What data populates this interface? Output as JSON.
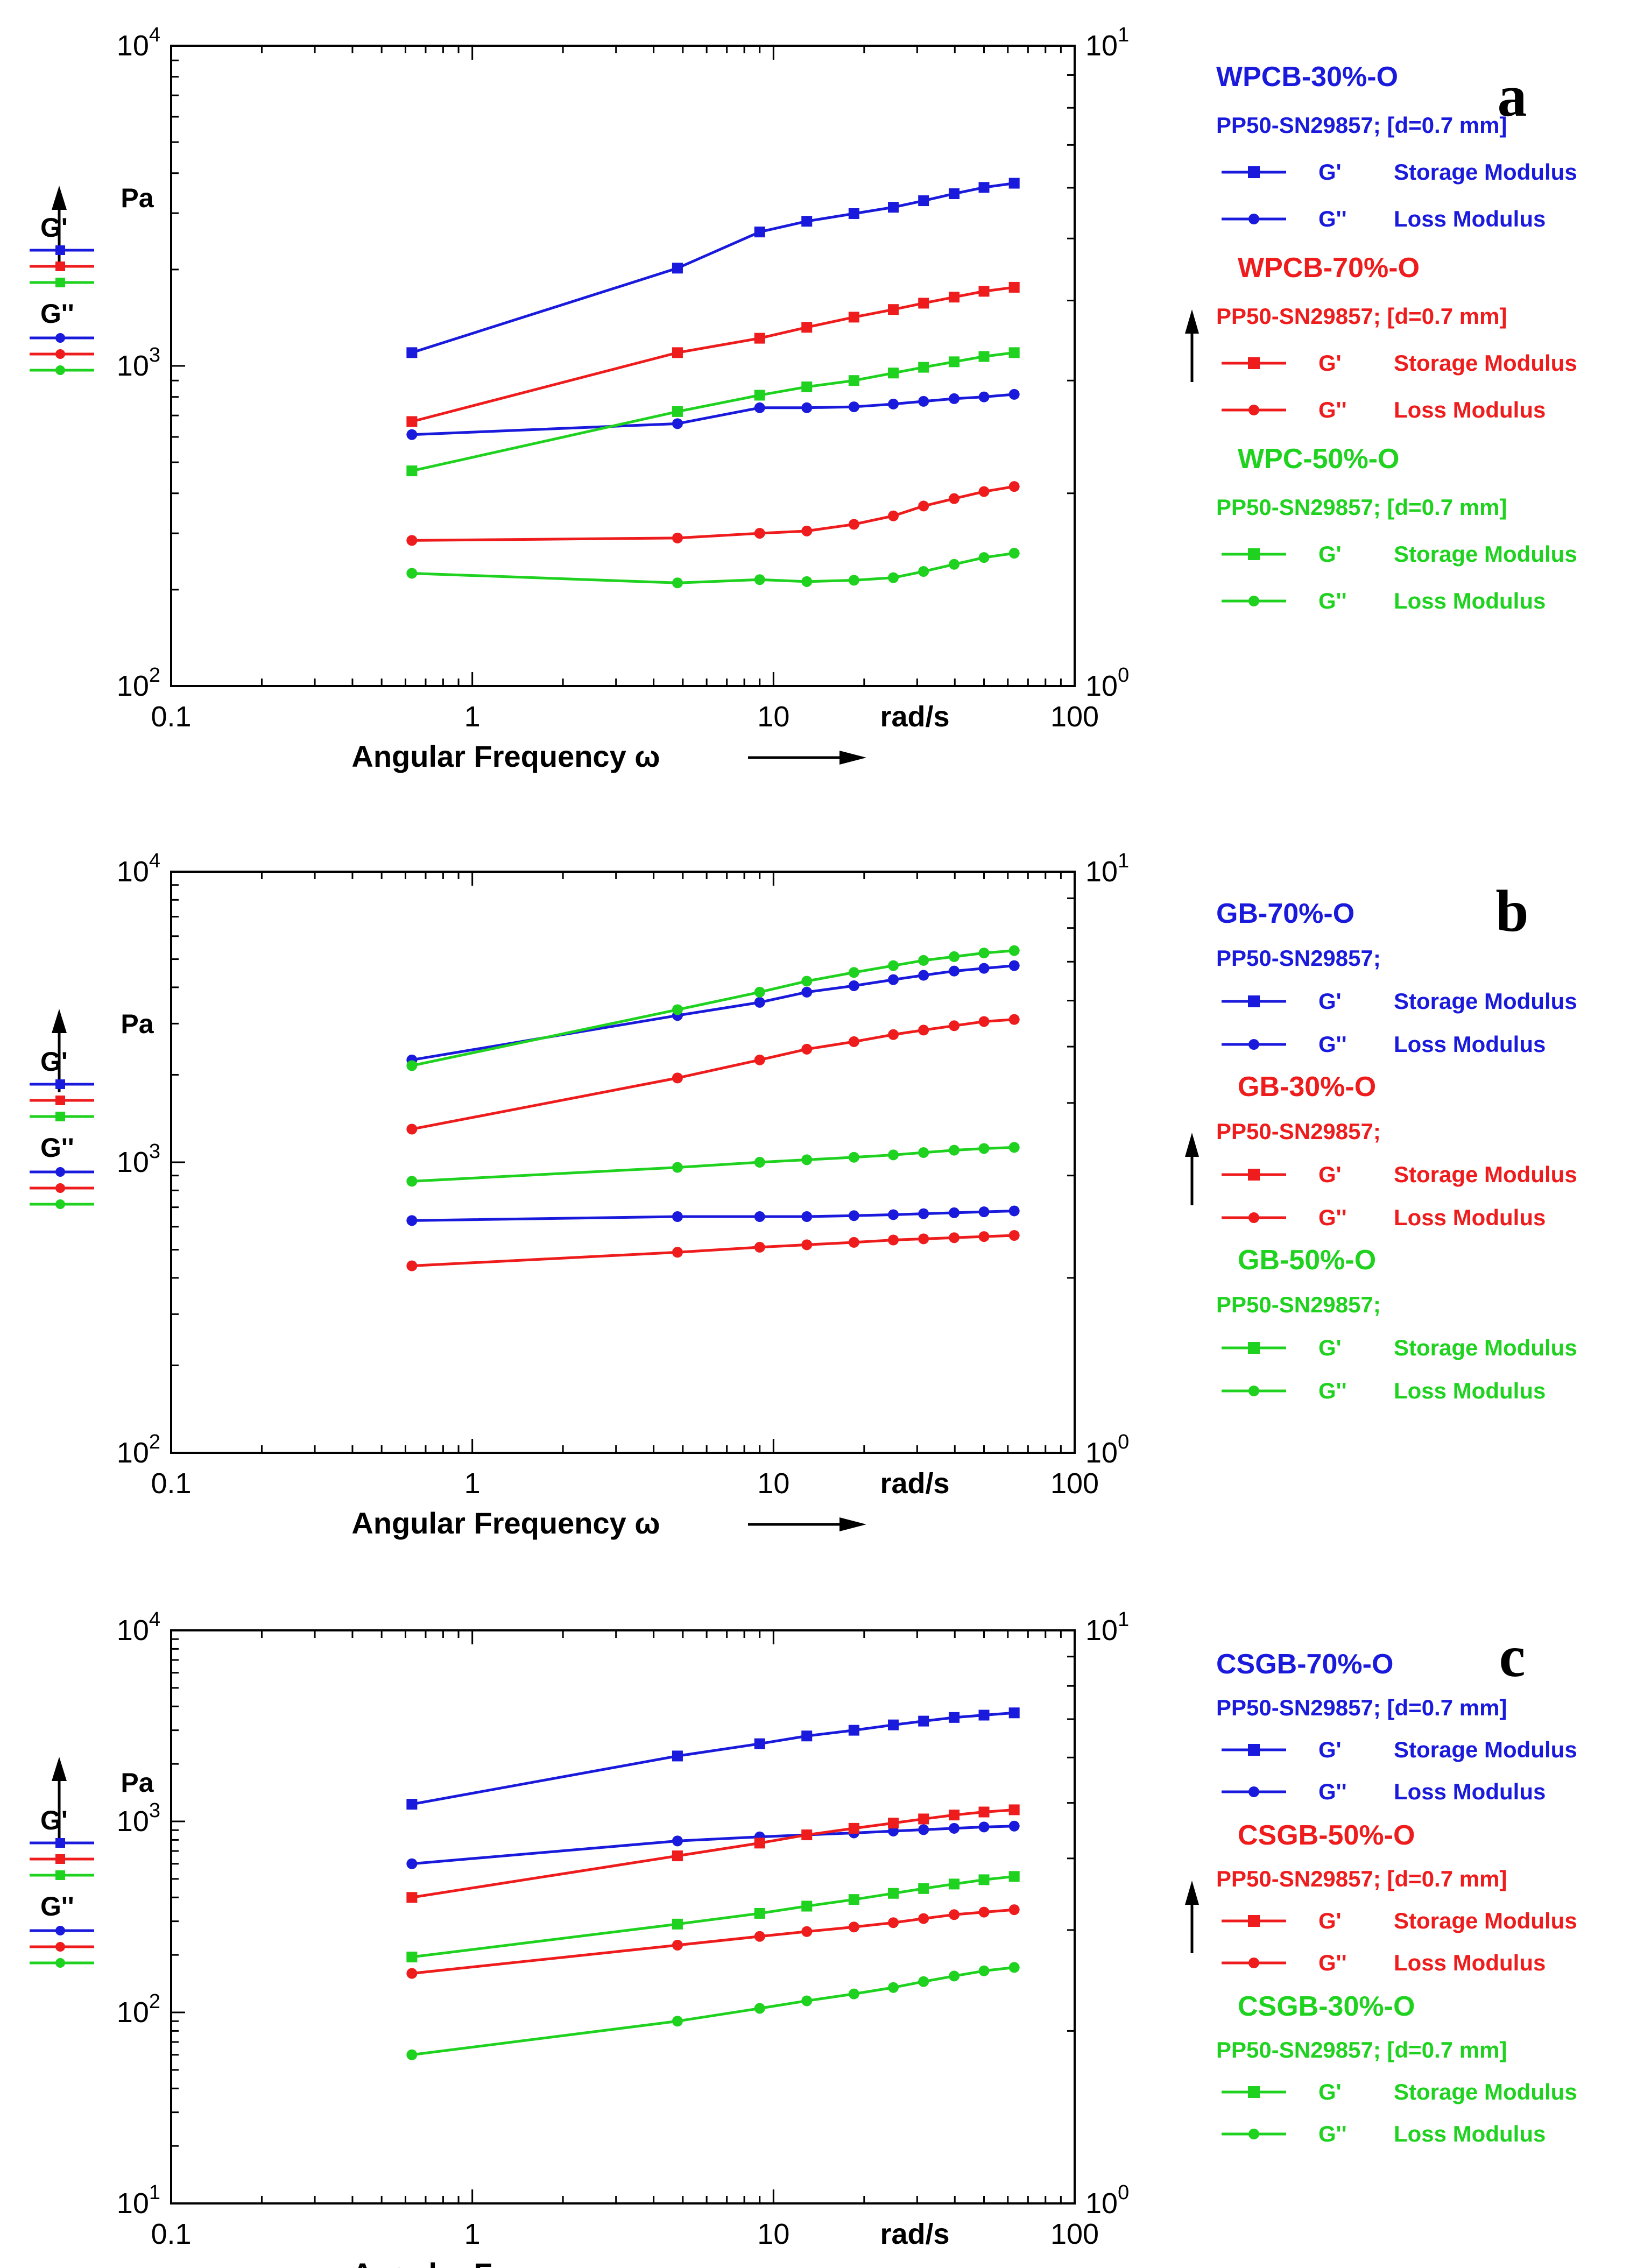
{
  "chart_data": [
    {
      "type": "line",
      "panel_letter": "a",
      "xlabel": "Angular Frequency ω",
      "x_unit": "rad/s",
      "ylabel": "Pa",
      "xscale": "log",
      "yscale": "log",
      "xlim": [
        0.1,
        100
      ],
      "ylim": [
        100,
        10000
      ],
      "y2lim": [
        1,
        10
      ],
      "x_ticks": [
        {
          "v": 0.1,
          "label": "0.1"
        },
        {
          "v": 1,
          "label": "1"
        },
        {
          "v": 10,
          "label": "10"
        },
        {
          "v": 100,
          "label": "100"
        }
      ],
      "y_ticks": [
        {
          "v": 100,
          "base": "10",
          "exp": "2"
        },
        {
          "v": 1000,
          "base": "10",
          "exp": "3"
        },
        {
          "v": 10000,
          "base": "10",
          "exp": "4"
        }
      ],
      "y2_ticks": [
        {
          "v": 1,
          "base": "10",
          "exp": "0"
        },
        {
          "v": 10,
          "base": "10",
          "exp": "1"
        }
      ],
      "left_key": {
        "g1": "G'",
        "g2": "G''"
      },
      "legend": [
        {
          "sample": "WPCB-30%-O",
          "geometry": "PP50-SN29857; [d=0.7 mm]",
          "color": "#1a1adc",
          "g1": "G'",
          "g1_name": "Storage Modulus",
          "g2": "G''",
          "g2_name": "Loss Modulus"
        },
        {
          "sample": "WPCB-70%-O",
          "geometry": "PP50-SN29857; [d=0.7 mm]",
          "color": "#ee1c1c",
          "g1": "G'",
          "g1_name": "Storage Modulus",
          "g2": "G''",
          "g2_name": "Loss Modulus"
        },
        {
          "sample": "WPC-50%-O",
          "geometry": "PP50-SN29857; [d=0.7 mm]",
          "color": "#1fd21f",
          "g1": "G'",
          "g1_name": "Storage Modulus",
          "g2": "G''",
          "g2_name": "Loss Modulus"
        }
      ],
      "x": [
        0.63,
        4.8,
        9.0,
        12.9,
        18.5,
        25.0,
        31.5,
        39.8,
        50.0,
        63.0
      ],
      "series": [
        {
          "name": "WPCB-30%-O G'",
          "color": "#1a1adc",
          "marker": "square",
          "values": [
            1100,
            2020,
            2620,
            2830,
            2990,
            3130,
            3280,
            3450,
            3610,
            3720
          ]
        },
        {
          "name": "WPCB-30%-O G''",
          "color": "#1a1adc",
          "marker": "circle",
          "values": [
            610,
            660,
            740,
            740,
            745,
            760,
            775,
            790,
            800,
            815
          ]
        },
        {
          "name": "WPCB-70%-O G'",
          "color": "#ee1c1c",
          "marker": "square",
          "values": [
            670,
            1100,
            1220,
            1320,
            1420,
            1500,
            1570,
            1640,
            1710,
            1760
          ]
        },
        {
          "name": "WPCB-70%-O G''",
          "color": "#ee1c1c",
          "marker": "circle",
          "values": [
            285,
            290,
            300,
            305,
            320,
            340,
            365,
            385,
            405,
            420
          ]
        },
        {
          "name": "WPC-50%-O G'",
          "color": "#1fd21f",
          "marker": "square",
          "values": [
            470,
            720,
            810,
            860,
            900,
            950,
            990,
            1030,
            1070,
            1100
          ]
        },
        {
          "name": "WPC-50%-O G''",
          "color": "#1fd21f",
          "marker": "circle",
          "values": [
            225,
            210,
            215,
            212,
            214,
            218,
            228,
            240,
            252,
            260
          ]
        }
      ]
    },
    {
      "type": "line",
      "panel_letter": "b",
      "xlabel": "Angular Frequency ω",
      "x_unit": "rad/s",
      "ylabel": "Pa",
      "xscale": "log",
      "yscale": "log",
      "xlim": [
        0.1,
        100
      ],
      "ylim": [
        100,
        10000
      ],
      "y2lim": [
        1,
        10
      ],
      "x_ticks": [
        {
          "v": 0.1,
          "label": "0.1"
        },
        {
          "v": 1,
          "label": "1"
        },
        {
          "v": 10,
          "label": "10"
        },
        {
          "v": 100,
          "label": "100"
        }
      ],
      "y_ticks": [
        {
          "v": 100,
          "base": "10",
          "exp": "2"
        },
        {
          "v": 1000,
          "base": "10",
          "exp": "3"
        },
        {
          "v": 10000,
          "base": "10",
          "exp": "4"
        }
      ],
      "y2_ticks": [
        {
          "v": 1,
          "base": "10",
          "exp": "0"
        },
        {
          "v": 10,
          "base": "10",
          "exp": "1"
        }
      ],
      "left_key": {
        "g1": "G'",
        "g2": "G''"
      },
      "legend": [
        {
          "sample": "GB-70%-O",
          "geometry": "PP50-SN29857;",
          "color": "#1a1adc",
          "g1": "G'",
          "g1_name": "Storage Modulus",
          "g2": "G''",
          "g2_name": "Loss Modulus"
        },
        {
          "sample": "GB-30%-O",
          "geometry": "PP50-SN29857;",
          "color": "#ee1c1c",
          "g1": "G'",
          "g1_name": "Storage Modulus",
          "g2": "G''",
          "g2_name": "Loss Modulus"
        },
        {
          "sample": "GB-50%-O",
          "geometry": "PP50-SN29857;",
          "color": "#1fd21f",
          "g1": "G'",
          "g1_name": "Storage Modulus",
          "g2": "G''",
          "g2_name": "Loss Modulus"
        }
      ],
      "x": [
        0.63,
        4.8,
        9.0,
        12.9,
        18.5,
        25.0,
        31.5,
        39.8,
        50.0,
        63.0
      ],
      "series": [
        {
          "name": "GB-70%-O G'",
          "color": "#1a1adc",
          "marker": "circle",
          "values": [
            2250,
            3200,
            3550,
            3850,
            4050,
            4250,
            4400,
            4550,
            4650,
            4750
          ]
        },
        {
          "name": "GB-70%-O G''",
          "color": "#1a1adc",
          "marker": "circle",
          "values": [
            630,
            650,
            650,
            650,
            655,
            660,
            665,
            670,
            675,
            680
          ]
        },
        {
          "name": "GB-30%-O G'",
          "color": "#ee1c1c",
          "marker": "circle",
          "values": [
            1300,
            1950,
            2250,
            2450,
            2600,
            2750,
            2850,
            2950,
            3050,
            3100
          ]
        },
        {
          "name": "GB-30%-O G''",
          "color": "#ee1c1c",
          "marker": "circle",
          "values": [
            440,
            490,
            510,
            520,
            530,
            540,
            545,
            550,
            555,
            560
          ]
        },
        {
          "name": "GB-50%-O G'",
          "color": "#1fd21f",
          "marker": "circle",
          "values": [
            2150,
            3350,
            3850,
            4200,
            4500,
            4750,
            4950,
            5100,
            5250,
            5350
          ]
        },
        {
          "name": "GB-50%-O G''",
          "color": "#1fd21f",
          "marker": "circle",
          "values": [
            860,
            960,
            1000,
            1020,
            1040,
            1060,
            1080,
            1100,
            1115,
            1125
          ]
        }
      ]
    },
    {
      "type": "line",
      "panel_letter": "c",
      "xlabel": "Angular Frequency ω",
      "x_unit": "rad/s",
      "ylabel": "Pa",
      "xscale": "log",
      "yscale": "log",
      "xlim": [
        0.1,
        100
      ],
      "ylim": [
        10,
        10000
      ],
      "y2lim": [
        1,
        10
      ],
      "x_ticks": [
        {
          "v": 0.1,
          "label": "0.1"
        },
        {
          "v": 1,
          "label": "1"
        },
        {
          "v": 10,
          "label": "10"
        },
        {
          "v": 100,
          "label": "100"
        }
      ],
      "y_ticks": [
        {
          "v": 10,
          "base": "10",
          "exp": "1"
        },
        {
          "v": 100,
          "base": "10",
          "exp": "2"
        },
        {
          "v": 1000,
          "base": "10",
          "exp": "3"
        },
        {
          "v": 10000,
          "base": "10",
          "exp": "4"
        }
      ],
      "y2_ticks": [
        {
          "v": 1,
          "base": "10",
          "exp": "0"
        },
        {
          "v": 10,
          "base": "10",
          "exp": "1"
        }
      ],
      "left_key": {
        "g1": "G'",
        "g2": "G''"
      },
      "legend": [
        {
          "sample": "CSGB-70%-O",
          "geometry": "PP50-SN29857; [d=0.7 mm]",
          "color": "#1a1adc",
          "g1": "G'",
          "g1_name": "Storage Modulus",
          "g2": "G''",
          "g2_name": "Loss Modulus"
        },
        {
          "sample": "CSGB-50%-O",
          "geometry": "PP50-SN29857; [d=0.7 mm]",
          "color": "#ee1c1c",
          "g1": "G'",
          "g1_name": "Storage Modulus",
          "g2": "G''",
          "g2_name": "Loss Modulus"
        },
        {
          "sample": "CSGB-30%-O",
          "geometry": "PP50-SN29857; [d=0.7 mm]",
          "color": "#1fd21f",
          "g1": "G'",
          "g1_name": "Storage Modulus",
          "g2": "G''",
          "g2_name": "Loss Modulus"
        }
      ],
      "x": [
        0.63,
        4.8,
        9.0,
        12.9,
        18.5,
        25.0,
        31.5,
        39.8,
        50.0,
        63.0
      ],
      "series": [
        {
          "name": "CSGB-70%-O G'",
          "color": "#1a1adc",
          "marker": "square",
          "values": [
            1230,
            2200,
            2550,
            2800,
            3000,
            3200,
            3350,
            3500,
            3600,
            3700
          ]
        },
        {
          "name": "CSGB-70%-O G''",
          "color": "#1a1adc",
          "marker": "circle",
          "values": [
            600,
            790,
            830,
            850,
            870,
            890,
            905,
            920,
            935,
            945
          ]
        },
        {
          "name": "CSGB-50%-O G'",
          "color": "#ee1c1c",
          "marker": "square",
          "values": [
            400,
            660,
            770,
            850,
            920,
            980,
            1030,
            1080,
            1120,
            1150
          ]
        },
        {
          "name": "CSGB-50%-O G''",
          "color": "#ee1c1c",
          "marker": "circle",
          "values": [
            160,
            225,
            250,
            265,
            280,
            295,
            310,
            325,
            335,
            345
          ]
        },
        {
          "name": "CSGB-30%-O G'",
          "color": "#1fd21f",
          "marker": "square",
          "values": [
            195,
            290,
            330,
            360,
            390,
            420,
            445,
            470,
            495,
            515
          ]
        },
        {
          "name": "CSGB-30%-O G''",
          "color": "#1fd21f",
          "marker": "circle",
          "values": [
            60,
            90,
            105,
            115,
            125,
            135,
            145,
            155,
            165,
            172
          ]
        }
      ]
    }
  ]
}
